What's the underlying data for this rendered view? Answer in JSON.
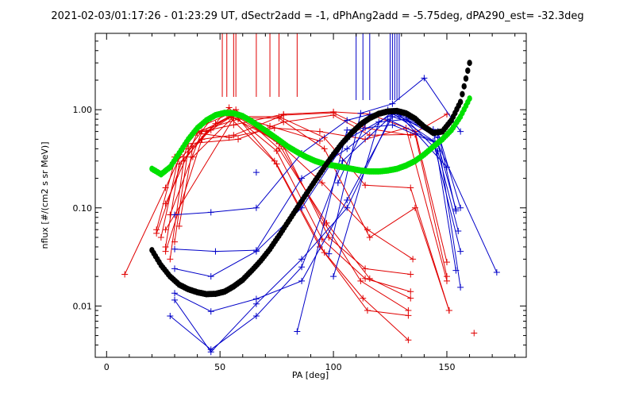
{
  "chart_data": {
    "type": "scatter",
    "title": "2021-02-03/01:17:26 - 01:23:29 UT, dSectr2add = -1, dPhAng2add = -5.75deg, dPA290_est= -32.3deg",
    "xlabel": "PA [deg]",
    "ylabel": "nflux [#/(cm2 s sr MeV)]",
    "xlim": [
      -5,
      185
    ],
    "ylim": [
      0.003,
      6.0
    ],
    "yscale": "log",
    "grid": false,
    "x_ticks": [
      {
        "value": 0,
        "label": "0"
      },
      {
        "value": 50,
        "label": "50"
      },
      {
        "value": 100,
        "label": "100"
      },
      {
        "value": 150,
        "label": "150"
      }
    ],
    "y_ticks": [
      {
        "value": 0.01,
        "label": "0.01"
      },
      {
        "value": 0.1,
        "label": "0.10"
      },
      {
        "value": 1.0,
        "label": "1.00"
      }
    ],
    "colors": {
      "red": "#e00000",
      "blue": "#0000c8",
      "black": "#000000",
      "green": "#00e000"
    },
    "vlines_red": [
      51,
      53,
      56,
      57,
      66,
      72,
      76,
      84
    ],
    "vlines_blue": [
      110,
      113,
      116,
      125,
      126,
      127,
      128,
      129
    ],
    "red_series": [
      {
        "x": [
          22,
          30,
          38,
          55,
          75,
          95,
          115,
          135
        ],
        "y": [
          0.06,
          0.3,
          0.55,
          0.85,
          0.48,
          0.18,
          0.06,
          0.03
        ]
      },
      {
        "x": [
          24,
          32,
          40,
          56,
          76,
          96,
          112,
          133
        ],
        "y": [
          0.05,
          0.35,
          0.65,
          0.95,
          0.45,
          0.07,
          0.018,
          0.009
        ]
      },
      {
        "x": [
          26,
          32,
          42,
          54,
          74,
          94,
          113,
          133
        ],
        "y": [
          0.04,
          0.28,
          0.5,
          1.05,
          0.3,
          0.04,
          0.012,
          0.0045
        ]
      },
      {
        "x": [
          28,
          34,
          44,
          56,
          78,
          98,
          114,
          134
        ],
        "y": [
          0.03,
          0.3,
          0.6,
          0.9,
          0.42,
          0.05,
          0.024,
          0.021
        ]
      },
      {
        "x": [
          30,
          36,
          46,
          57,
          76,
          97,
          116,
          134
        ],
        "y": [
          0.045,
          0.4,
          0.8,
          1.0,
          0.4,
          0.07,
          0.019,
          0.012
        ]
      },
      {
        "x": [
          32,
          38,
          48,
          54,
          75,
          96,
          115,
          133
        ],
        "y": [
          0.065,
          0.42,
          0.72,
          0.85,
          0.28,
          0.035,
          0.009,
          0.008
        ]
      },
      {
        "x": [
          8,
          26,
          34,
          40,
          58,
          75,
          95,
          114,
          134
        ],
        "y": [
          0.021,
          0.16,
          0.4,
          0.6,
          0.8,
          0.38,
          0.048,
          0.019,
          0.014
        ]
      },
      {
        "x": [
          26,
          42,
          56,
          78,
          100,
          114,
          134,
          150
        ],
        "y": [
          0.036,
          0.5,
          0.55,
          0.88,
          0.93,
          0.65,
          0.55,
          0.9
        ]
      },
      {
        "x": [
          28,
          42,
          56,
          78,
          100,
          116,
          136,
          150
        ],
        "y": [
          0.085,
          0.6,
          0.7,
          0.9,
          0.95,
          0.9,
          0.6,
          0.028
        ]
      },
      {
        "x": [
          22,
          36,
          58,
          78,
          100,
          116,
          136,
          150
        ],
        "y": [
          0.055,
          0.45,
          0.5,
          0.75,
          0.88,
          0.55,
          0.56,
          0.02
        ]
      },
      {
        "x": [
          26,
          40,
          54,
          74,
          94,
          114,
          132,
          150
        ],
        "y": [
          0.11,
          0.58,
          0.52,
          0.65,
          0.6,
          0.5,
          0.65,
          0.018
        ]
      },
      {
        "x": [
          30,
          38,
          56,
          76,
          96,
          114,
          134,
          151
        ],
        "y": [
          0.33,
          0.33,
          0.85,
          0.85,
          0.52,
          0.17,
          0.16,
          0.009
        ]
      },
      {
        "x": [
          28,
          46,
          56,
          72,
          94
        ],
        "y": [
          0.26,
          0.62,
          0.88,
          0.68,
          0.48
        ]
      },
      {
        "x": [
          26,
          56,
          76,
          96,
          116,
          136,
          151
        ],
        "y": [
          0.06,
          0.82,
          0.82,
          0.4,
          0.05,
          0.1,
          0.009
        ]
      }
    ],
    "red_points": [
      {
        "x": 162,
        "y": 0.0053
      }
    ],
    "blue_series": [
      {
        "x": [
          30,
          46,
          66,
          86,
          106,
          126,
          146,
          154
        ],
        "y": [
          0.0135,
          0.0088,
          0.0118,
          0.018,
          0.12,
          0.85,
          0.6,
          0.093
        ]
      },
      {
        "x": [
          28,
          46,
          66,
          86,
          104,
          124,
          144,
          156
        ],
        "y": [
          0.0079,
          0.0036,
          0.0079,
          0.025,
          0.3,
          0.8,
          0.48,
          0.036
        ]
      },
      {
        "x": [
          30,
          48,
          66,
          86,
          106,
          126,
          146,
          156
        ],
        "y": [
          0.038,
          0.036,
          0.037,
          0.2,
          0.4,
          0.95,
          0.52,
          0.0155
        ]
      },
      {
        "x": [
          30,
          46,
          66,
          86,
          106,
          126,
          146,
          156
        ],
        "y": [
          0.024,
          0.02,
          0.036,
          0.1,
          0.5,
          0.9,
          0.6,
          0.1
        ]
      },
      {
        "x": [
          30,
          46,
          66,
          86,
          106,
          124,
          144,
          154
        ],
        "y": [
          0.085,
          0.09,
          0.1,
          0.36,
          0.78,
          1.0,
          0.63,
          0.023
        ]
      },
      {
        "x": [
          30,
          46,
          66,
          86,
          106,
          126,
          146,
          154
        ],
        "y": [
          0.0115,
          0.0034,
          0.0105,
          0.03,
          0.1,
          0.92,
          0.45,
          0.097
        ]
      },
      {
        "x": [
          84,
          106,
          126,
          146,
          172
        ],
        "y": [
          0.0055,
          0.62,
          0.7,
          0.45,
          0.022
        ]
      },
      {
        "x": [
          98,
          112,
          126,
          140,
          156
        ],
        "y": [
          0.034,
          0.92,
          1.15,
          2.1,
          0.6
        ]
      },
      {
        "x": [
          102,
          116,
          128,
          150
        ],
        "y": [
          0.18,
          0.88,
          0.95,
          0.26
        ]
      },
      {
        "x": [
          100,
          120,
          132,
          146,
          155
        ],
        "y": [
          0.02,
          0.75,
          0.8,
          0.38,
          0.058
        ]
      }
    ],
    "blue_points": [
      {
        "x": 66,
        "y": 0.23
      }
    ],
    "black_curve": {
      "x": [
        20,
        24,
        28,
        32,
        36,
        40,
        44,
        48,
        52,
        56,
        60,
        64,
        68,
        72,
        76,
        80,
        84,
        88,
        92,
        96,
        100,
        104,
        108,
        112,
        116,
        120,
        124,
        128,
        132,
        136,
        140,
        144,
        148,
        152,
        156,
        160
      ],
      "y": [
        0.037,
        0.026,
        0.02,
        0.0165,
        0.0148,
        0.0138,
        0.0132,
        0.0133,
        0.014,
        0.0158,
        0.0185,
        0.023,
        0.029,
        0.038,
        0.052,
        0.072,
        0.1,
        0.138,
        0.19,
        0.26,
        0.35,
        0.46,
        0.58,
        0.71,
        0.82,
        0.91,
        0.96,
        0.97,
        0.92,
        0.81,
        0.67,
        0.58,
        0.6,
        0.78,
        1.2,
        3.0
      ]
    },
    "green_curve": {
      "x": [
        20,
        24,
        28,
        32,
        36,
        40,
        44,
        48,
        52,
        56,
        60,
        64,
        68,
        72,
        76,
        80,
        84,
        88,
        92,
        96,
        100,
        104,
        108,
        112,
        116,
        120,
        124,
        128,
        132,
        136,
        140,
        144,
        148,
        152,
        156,
        160
      ],
      "y": [
        0.25,
        0.22,
        0.26,
        0.36,
        0.5,
        0.65,
        0.78,
        0.88,
        0.93,
        0.92,
        0.86,
        0.76,
        0.66,
        0.57,
        0.49,
        0.42,
        0.37,
        0.33,
        0.3,
        0.28,
        0.27,
        0.26,
        0.25,
        0.24,
        0.235,
        0.235,
        0.24,
        0.25,
        0.27,
        0.3,
        0.35,
        0.42,
        0.5,
        0.62,
        0.85,
        1.3
      ]
    }
  }
}
